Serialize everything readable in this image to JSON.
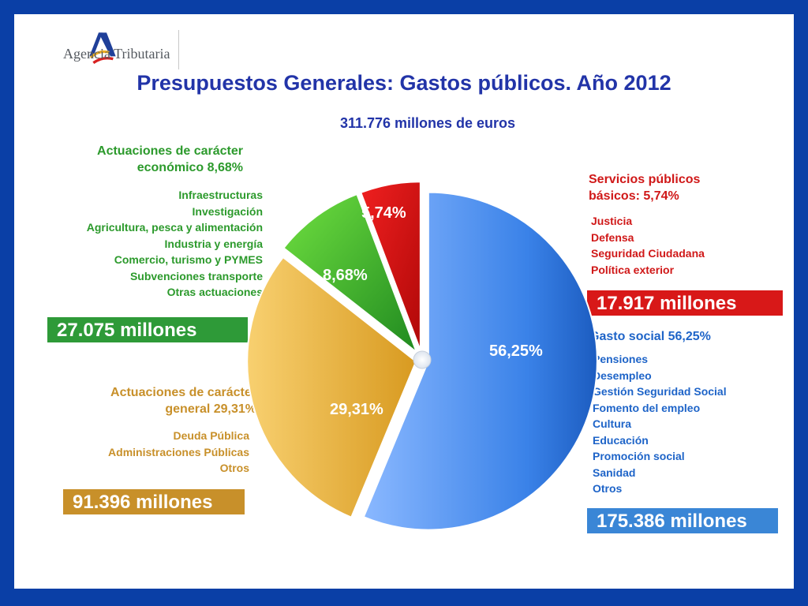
{
  "header": {
    "logo_text": "Agencia Tributaria",
    "title": "Presupuestos Generales: Gastos públicos. Año 2012",
    "subtitle": "311.776 millones de euros"
  },
  "groups": {
    "economic": {
      "title_line1": "Actuaciones de carácter",
      "title_line2": "económico 8,68%",
      "items": [
        "Infraestructuras",
        "Investigación",
        "Agricultura, pesca y alimentación",
        "Industria y energía",
        "Comercio, turismo y PYMES",
        "Subvenciones transporte",
        "Otras actuaciones"
      ],
      "amount": "27.075 millones"
    },
    "general": {
      "title_line1": "Actuaciones de carácter",
      "title_line2": "general  29,31%",
      "items": [
        "Deuda Pública",
        "Administraciones Públicas",
        "Otros"
      ],
      "amount": "91.396 millones"
    },
    "basic": {
      "title_line1": "Servicios públicos",
      "title_line2": "básicos: 5,74%",
      "items": [
        "Justicia",
        "Defensa",
        "Seguridad Ciudadana",
        "Política exterior"
      ],
      "amount": "17.917  millones"
    },
    "social": {
      "title": "Gasto social 56,25%",
      "items": [
        "Pensiones",
        "Desempleo",
        "Gestión Seguridad Social",
        "Fomento del empleo",
        "Cultura",
        "Educación",
        "Promoción social",
        "Sanidad",
        "Otros"
      ],
      "amount": "175.386 millones"
    }
  },
  "colors": {
    "social": "#3a82e8",
    "general": "#e8b440",
    "economic": "#38b020",
    "basic": "#d81818",
    "social_box": "#3a86d6",
    "general_box": "#c8902a",
    "economic_box": "#2e9a38",
    "basic_box": "#d81818"
  },
  "chart_data": {
    "type": "pie",
    "title": "Presupuestos Generales: Gastos públicos. Año 2012",
    "total": "311.776 millones de euros",
    "series": [
      {
        "name": "Gasto social",
        "value": 56.25,
        "label": "56,25%",
        "amount": "175.386 millones"
      },
      {
        "name": "Actuaciones de carácter general",
        "value": 29.31,
        "label": "29,31%",
        "amount": "91.396 millones"
      },
      {
        "name": "Actuaciones de carácter económico",
        "value": 8.68,
        "label": "8,68%",
        "amount": "27.075 millones"
      },
      {
        "name": "Servicios públicos básicos",
        "value": 5.74,
        "label": "5,74%",
        "amount": "17.917  millones"
      }
    ]
  }
}
